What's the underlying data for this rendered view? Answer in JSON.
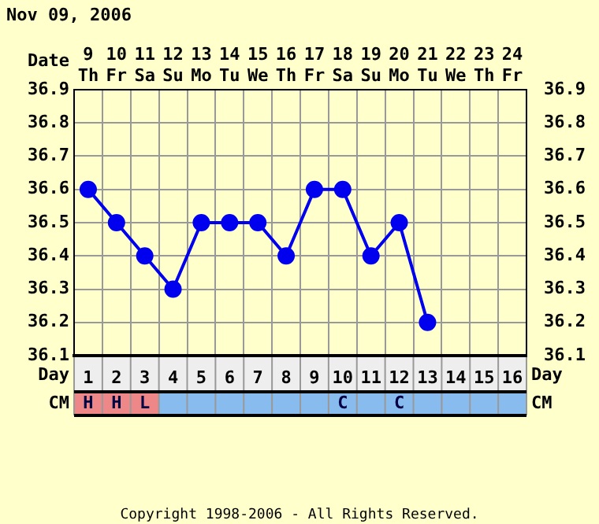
{
  "chart_data": {
    "type": "line",
    "title": "Nov 09, 2006",
    "xlabel": "Date",
    "x2label": "Day",
    "categories": [
      "9 Th",
      "10 Fr",
      "11 Sa",
      "12 Su",
      "13 Mo",
      "14 Tu",
      "15 We",
      "16 Th",
      "17 Fr",
      "18 Sa",
      "19 Su",
      "20 Mo",
      "21 Tu",
      "22 We",
      "23 Th",
      "24 Fr"
    ],
    "series": [
      {
        "color": "#0000ee",
        "values": [
          36.6,
          36.5,
          36.4,
          36.3,
          36.5,
          36.5,
          36.5,
          36.4,
          36.6,
          36.6,
          36.4,
          36.5,
          36.2,
          null,
          null,
          null
        ]
      }
    ],
    "ylim": [
      36.1,
      36.9
    ],
    "yticks": [
      36.1,
      36.2,
      36.3,
      36.4,
      36.5,
      36.6,
      36.7,
      36.8,
      36.9
    ],
    "y2lim": [
      36.1,
      36.9
    ],
    "y2ticks": [
      36.1,
      36.2,
      36.3,
      36.4,
      36.5,
      36.6,
      36.7,
      36.8,
      36.9
    ],
    "x2lim": [
      0.5,
      16.5
    ],
    "x2ticks": [
      1,
      2,
      3,
      4,
      5,
      6,
      7,
      8,
      9,
      10,
      11,
      12,
      13,
      14,
      15,
      16
    ],
    "grid": true,
    "legend": false,
    "marker": "circle",
    "line_style": "solid",
    "annotations": [
      "CM",
      "H",
      "H",
      "L",
      "C",
      "C",
      "Copyright 1998-2006 - All Rights Reserved."
    ]
  }
}
